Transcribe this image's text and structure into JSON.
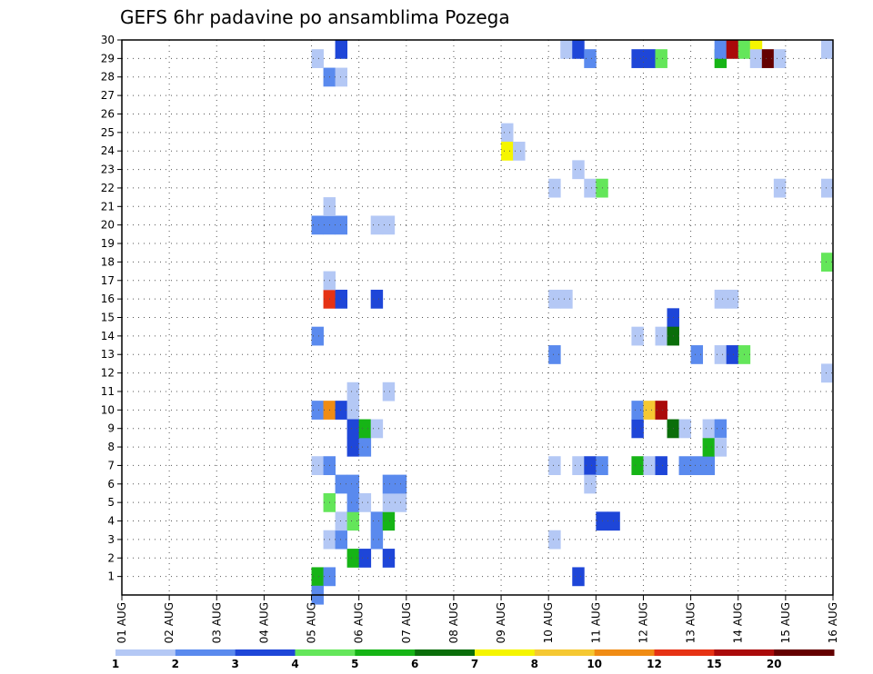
{
  "chart_data": {
    "type": "heatmap",
    "title": "GEFS 6hr padavine po ansamblima Pozega",
    "xlabel": "",
    "ylabel": "",
    "x_tick_labels": [
      "01 AUG",
      "02 AUG",
      "03 AUG",
      "04 AUG",
      "05 AUG",
      "06 AUG",
      "07 AUG",
      "08 AUG",
      "09 AUG",
      "10 AUG",
      "11 AUG",
      "12 AUG",
      "13 AUG",
      "14 AUG",
      "15 AUG",
      "16 AUG"
    ],
    "x_range_steps": [
      0,
      60
    ],
    "y_tick_labels": [
      "1",
      "2",
      "3",
      "4",
      "5",
      "6",
      "7",
      "8",
      "9",
      "10",
      "11",
      "12",
      "13",
      "14",
      "15",
      "16",
      "17",
      "18",
      "19",
      "20",
      "21",
      "22",
      "23",
      "24",
      "25",
      "26",
      "27",
      "28",
      "29",
      "30"
    ],
    "y_range": [
      0,
      30
    ],
    "grid": true,
    "colorbar": {
      "labels": [
        "1",
        "2",
        "3",
        "4",
        "5",
        "6",
        "7",
        "8",
        "10",
        "12",
        "15",
        "20"
      ],
      "colors": [
        "#b4c8f5",
        "#5a8aee",
        "#1e46d8",
        "#64e65a",
        "#16b416",
        "#0a6e0a",
        "#f5f500",
        "#f5c832",
        "#f08c14",
        "#e63214",
        "#aa0a0a",
        "#640000"
      ]
    },
    "cells": [
      {
        "t": 16,
        "m": 1,
        "c": 5
      },
      {
        "t": 17,
        "m": 1,
        "c": 2
      },
      {
        "t": 19,
        "m": 2,
        "c": 5
      },
      {
        "t": 20,
        "m": 2,
        "c": 3
      },
      {
        "t": 17,
        "m": 3,
        "c": 1
      },
      {
        "t": 18,
        "m": 3,
        "c": 2
      },
      {
        "t": 18,
        "m": 4,
        "c": 1
      },
      {
        "t": 19,
        "m": 4,
        "c": 4
      },
      {
        "t": 17,
        "m": 5,
        "c": 4
      },
      {
        "t": 19,
        "m": 5,
        "c": 2
      },
      {
        "t": 20,
        "m": 5,
        "c": 1
      },
      {
        "t": 18,
        "m": 6,
        "c": 2
      },
      {
        "t": 19,
        "m": 6,
        "c": 2
      },
      {
        "t": 16,
        "m": 7,
        "c": 1
      },
      {
        "t": 17,
        "m": 7,
        "c": 2
      },
      {
        "t": 16,
        "m": 10,
        "c": 2
      },
      {
        "t": 17,
        "m": 10,
        "c": 9
      },
      {
        "t": 18,
        "m": 10,
        "c": 3
      },
      {
        "t": 19,
        "m": 10,
        "c": 1
      },
      {
        "t": 19,
        "m": 11,
        "c": 1
      },
      {
        "t": 16,
        "m": 14,
        "c": 2
      },
      {
        "t": 17,
        "m": 16,
        "c": 10
      },
      {
        "t": 18,
        "m": 16,
        "c": 3
      },
      {
        "t": 17,
        "m": 17,
        "c": 1
      },
      {
        "t": 16,
        "m": 20,
        "c": 2
      },
      {
        "t": 17,
        "m": 20,
        "c": 2
      },
      {
        "t": 18,
        "m": 20,
        "c": 2
      },
      {
        "t": 17,
        "m": 21,
        "c": 1
      },
      {
        "t": 17,
        "m": 28,
        "c": 2
      },
      {
        "t": 18,
        "m": 28,
        "c": 1
      },
      {
        "t": 16,
        "m": 29,
        "c": 1
      },
      {
        "t": 18,
        "m": 30,
        "c": 3
      },
      {
        "t": 19,
        "m": 8,
        "c": 3
      },
      {
        "t": 20,
        "m": 8,
        "c": 2
      },
      {
        "t": 19,
        "m": 9,
        "c": 3
      },
      {
        "t": 20,
        "m": 9,
        "c": 5
      },
      {
        "t": 21,
        "m": 9,
        "c": 1
      },
      {
        "t": 22,
        "m": 2,
        "c": 3
      },
      {
        "t": 21,
        "m": 3,
        "c": 2
      },
      {
        "t": 21,
        "m": 4,
        "c": 2
      },
      {
        "t": 22,
        "m": 4,
        "c": 5
      },
      {
        "t": 22,
        "m": 5,
        "c": 1
      },
      {
        "t": 23,
        "m": 5,
        "c": 1
      },
      {
        "t": 22,
        "m": 6,
        "c": 2
      },
      {
        "t": 23,
        "m": 6,
        "c": 2
      },
      {
        "t": 22,
        "m": 11,
        "c": 1
      },
      {
        "t": 21,
        "m": 16,
        "c": 3
      },
      {
        "t": 21,
        "m": 20,
        "c": 1
      },
      {
        "t": 22,
        "m": 20,
        "c": 1
      },
      {
        "t": 32,
        "m": 25,
        "c": 1
      },
      {
        "t": 32,
        "m": 24,
        "c": 7
      },
      {
        "t": 33,
        "m": 24,
        "c": 1
      },
      {
        "t": 36,
        "m": 7,
        "c": 1
      },
      {
        "t": 36,
        "m": 3,
        "c": 1
      },
      {
        "t": 36,
        "m": 13,
        "c": 2
      },
      {
        "t": 36,
        "m": 16,
        "c": 1
      },
      {
        "t": 37,
        "m": 16,
        "c": 1
      },
      {
        "t": 36,
        "m": 22,
        "c": 1
      },
      {
        "t": 38,
        "m": 23,
        "c": 1
      },
      {
        "t": 37,
        "m": 30,
        "c": 1
      },
      {
        "t": 38,
        "m": 30,
        "c": 3
      },
      {
        "t": 38,
        "m": 1,
        "c": 3
      },
      {
        "t": 38,
        "m": 7,
        "c": 1
      },
      {
        "t": 39,
        "m": 7,
        "c": 3
      },
      {
        "t": 40,
        "m": 7,
        "c": 2
      },
      {
        "t": 39,
        "m": 6,
        "c": 1
      },
      {
        "t": 39,
        "m": 29,
        "c": 2
      },
      {
        "t": 39,
        "m": 22,
        "c": 1
      },
      {
        "t": 40,
        "m": 22,
        "c": 4
      },
      {
        "t": 40,
        "m": 4,
        "c": 3
      },
      {
        "t": 41,
        "m": 4,
        "c": 3
      },
      {
        "t": 43,
        "m": 7,
        "c": 5
      },
      {
        "t": 43,
        "m": 9,
        "c": 3
      },
      {
        "t": 43,
        "m": 10,
        "c": 2
      },
      {
        "t": 44,
        "m": 10,
        "c": 8
      },
      {
        "t": 45,
        "m": 10,
        "c": 11
      },
      {
        "t": 43,
        "m": 14,
        "c": 1
      },
      {
        "t": 43,
        "m": 29,
        "c": 3
      },
      {
        "t": 44,
        "m": 29,
        "c": 3
      },
      {
        "t": 45,
        "m": 29,
        "c": 4
      },
      {
        "t": 44,
        "m": 7,
        "c": 1
      },
      {
        "t": 45,
        "m": 7,
        "c": 3
      },
      {
        "t": 45,
        "m": 14,
        "c": 1
      },
      {
        "t": 46,
        "m": 15,
        "c": 3
      },
      {
        "t": 46,
        "m": 14,
        "c": 6
      },
      {
        "t": 46,
        "m": 9,
        "c": 6
      },
      {
        "t": 47,
        "m": 9,
        "c": 1
      },
      {
        "t": 47,
        "m": 7,
        "c": 2
      },
      {
        "t": 48,
        "m": 7,
        "c": 2
      },
      {
        "t": 49,
        "m": 7,
        "c": 2
      },
      {
        "t": 48,
        "m": 13,
        "c": 2
      },
      {
        "t": 49,
        "m": 8,
        "c": 5
      },
      {
        "t": 49,
        "m": 9,
        "c": 1
      },
      {
        "t": 50,
        "m": 9,
        "c": 2
      },
      {
        "t": 50,
        "m": 8,
        "c": 1
      },
      {
        "t": 50,
        "m": 13,
        "c": 1
      },
      {
        "t": 51,
        "m": 13,
        "c": 3
      },
      {
        "t": 52,
        "m": 13,
        "c": 4
      },
      {
        "t": 50,
        "m": 16,
        "c": 1
      },
      {
        "t": 51,
        "m": 16,
        "c": 1
      },
      {
        "t": 50,
        "m": 29,
        "c": 5
      },
      {
        "t": 50,
        "m": 30,
        "c": 2
      },
      {
        "t": 51,
        "m": 30,
        "c": 11
      },
      {
        "t": 52,
        "m": 30,
        "c": 4
      },
      {
        "t": 53,
        "m": 30,
        "c": 7
      },
      {
        "t": 53,
        "m": 29,
        "c": 1
      },
      {
        "t": 54,
        "m": 29,
        "c": 12
      },
      {
        "t": 55,
        "m": 29,
        "c": 1
      },
      {
        "t": 55,
        "m": 22,
        "c": 1
      },
      {
        "t": 59,
        "m": 22,
        "c": 1
      },
      {
        "t": 59,
        "m": 30,
        "c": 1
      },
      {
        "t": 59,
        "m": 12,
        "c": 1
      },
      {
        "t": 59,
        "m": 18,
        "c": 4
      },
      {
        "t": 16,
        "m": 0,
        "c": 2
      }
    ]
  }
}
